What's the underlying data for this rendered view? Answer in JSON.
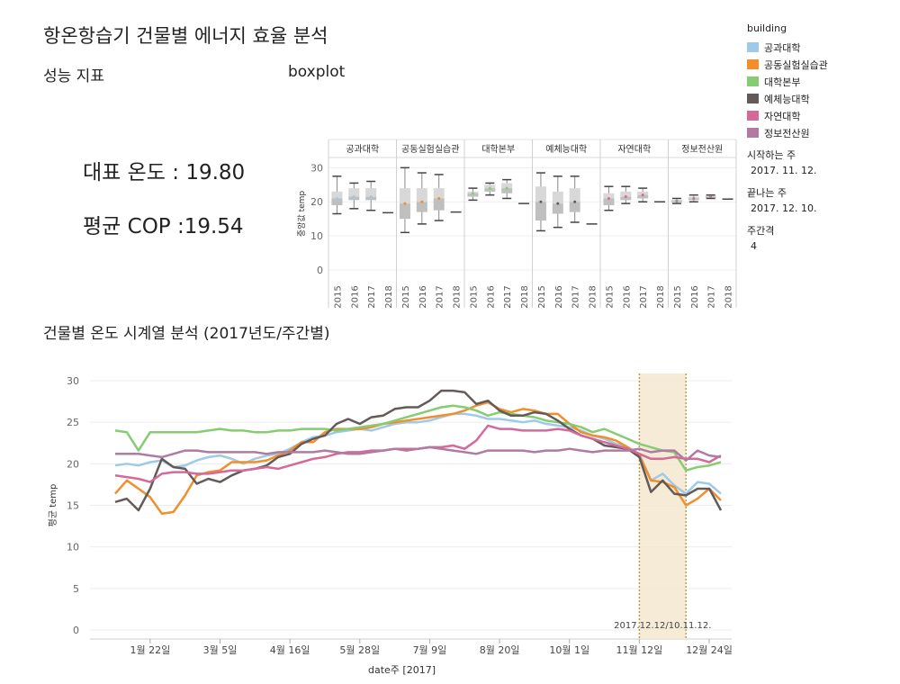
{
  "page": {
    "title": "항온항습기 건물별 에너지 효율 분석",
    "perf_label": "성능 지표",
    "boxplot_label": "boxplot",
    "kpi_temp": "대표 온도 : 19.80",
    "kpi_cop": "평균 COP :19.54",
    "timeseries_title": "건물별  온도 시계열 분석 (2017년도/주간별)"
  },
  "legend": {
    "title": "building",
    "items": [
      {
        "label": "공과대학",
        "color": "#9ecae9"
      },
      {
        "label": "공동실험실습관",
        "color": "#f28e2b"
      },
      {
        "label": "대학본부",
        "color": "#86cc72"
      },
      {
        "label": "예체능대학",
        "color": "#635b59"
      },
      {
        "label": "자연대학",
        "color": "#d4699a"
      },
      {
        "label": "정보전산원",
        "color": "#b07aa1"
      }
    ]
  },
  "params": {
    "start_label": "시작하는 주",
    "start_value": "2017. 11. 12.",
    "end_label": "끝나는 주",
    "end_value": "2017. 12. 10.",
    "interval_label": "주간격",
    "interval_value": "4"
  },
  "chart_data": [
    {
      "type": "boxplot",
      "ylabel": "중앙값 temp",
      "ylim": [
        0,
        33
      ],
      "yticks": [
        0,
        10,
        20,
        30
      ],
      "panels": [
        {
          "name": "공과대학",
          "years": [
            "2015",
            "2016",
            "2017",
            "2018"
          ],
          "boxes": [
            {
              "min": 16.5,
              "q1": 19,
              "med": 21,
              "q3": 23,
              "max": 27.5
            },
            {
              "min": 18,
              "q1": 20.5,
              "med": 21.5,
              "q3": 24,
              "max": 25.5
            },
            {
              "min": 17.5,
              "q1": 20.5,
              "med": 21.5,
              "q3": 24,
              "max": 26
            },
            {
              "min": 16.8,
              "q1": 16.8,
              "med": 16.8,
              "q3": 16.8,
              "max": 16.8
            }
          ]
        },
        {
          "name": "공동실험실습관",
          "years": [
            "2015",
            "2016",
            "2017",
            "2018"
          ],
          "boxes": [
            {
              "min": 11,
              "q1": 15,
              "med": 19.5,
              "q3": 24,
              "max": 30
            },
            {
              "min": 13.5,
              "q1": 17,
              "med": 20,
              "q3": 24,
              "max": 28.5
            },
            {
              "min": 14.5,
              "q1": 17.5,
              "med": 21,
              "q3": 24,
              "max": 28
            },
            {
              "min": 17,
              "q1": 17,
              "med": 17,
              "q3": 17,
              "max": 17
            }
          ]
        },
        {
          "name": "대학본부",
          "years": [
            "2015",
            "2016",
            "2017",
            "2018"
          ],
          "boxes": [
            {
              "min": 20.5,
              "q1": 21.5,
              "med": 22.5,
              "q3": 23,
              "max": 24
            },
            {
              "min": 22,
              "q1": 23,
              "med": 24,
              "q3": 25,
              "max": 25.5
            },
            {
              "min": 21,
              "q1": 22.5,
              "med": 24,
              "q3": 25.5,
              "max": 26.5
            },
            {
              "min": 19.5,
              "q1": 19.5,
              "med": 19.5,
              "q3": 19.5,
              "max": 19.5
            }
          ]
        },
        {
          "name": "예체능대학",
          "years": [
            "2015",
            "2016",
            "2017",
            "2018"
          ],
          "boxes": [
            {
              "min": 11.5,
              "q1": 14.5,
              "med": 20,
              "q3": 24.5,
              "max": 28.5
            },
            {
              "min": 12.5,
              "q1": 16.5,
              "med": 19.5,
              "q3": 23,
              "max": 27.5
            },
            {
              "min": 14,
              "q1": 17,
              "med": 20,
              "q3": 24,
              "max": 27.5
            },
            {
              "min": 13.5,
              "q1": 13.5,
              "med": 13.5,
              "q3": 13.5,
              "max": 13.5
            }
          ]
        },
        {
          "name": "자연대학",
          "years": [
            "2015",
            "2016",
            "2017",
            "2018"
          ],
          "boxes": [
            {
              "min": 17.5,
              "q1": 19,
              "med": 21,
              "q3": 22.5,
              "max": 24.5
            },
            {
              "min": 19.5,
              "q1": 20.5,
              "med": 21.5,
              "q3": 23,
              "max": 24.5
            },
            {
              "min": 20,
              "q1": 21,
              "med": 22,
              "q3": 23,
              "max": 24
            },
            {
              "min": 20,
              "q1": 20,
              "med": 20,
              "q3": 20,
              "max": 20
            }
          ]
        },
        {
          "name": "정보전산원",
          "years": [
            "2015",
            "2016",
            "2017",
            "2018"
          ],
          "boxes": [
            {
              "min": 19.5,
              "q1": 19.8,
              "med": 20.2,
              "q3": 20.6,
              "max": 21
            },
            {
              "min": 20,
              "q1": 20.5,
              "med": 21,
              "q3": 21.5,
              "max": 22
            },
            {
              "min": 21,
              "q1": 21.2,
              "med": 21.5,
              "q3": 21.8,
              "max": 22
            },
            {
              "min": 20.8,
              "q1": 20.8,
              "med": 20.8,
              "q3": 20.8,
              "max": 20.8
            }
          ]
        }
      ]
    },
    {
      "type": "line",
      "xlabel": "date주 [2017]",
      "ylabel": "평균 temp",
      "ylim": [
        0,
        30
      ],
      "yticks": [
        0,
        5,
        10,
        15,
        20,
        25,
        30
      ],
      "weeks": 52,
      "xticks": [
        {
          "label": "1월 22일",
          "week": 3
        },
        {
          "label": "3월 5일",
          "week": 9
        },
        {
          "label": "4월 16일",
          "week": 15
        },
        {
          "label": "5월 28일",
          "week": 21
        },
        {
          "label": "7월 9일",
          "week": 27
        },
        {
          "label": "8월 20일",
          "week": 33
        },
        {
          "label": "10월 1일",
          "week": 39
        },
        {
          "label": "11월 12일",
          "week": 45
        },
        {
          "label": "12월 24일",
          "week": 51
        }
      ],
      "highlight": {
        "from_week": 45,
        "to_week": 49,
        "label": "2017.12.12/10.11.12."
      },
      "series": [
        {
          "name": "공과대학",
          "color": "#9ecae9",
          "values": [
            19.8,
            20.0,
            19.8,
            20.2,
            20.4,
            19.6,
            19.8,
            20.4,
            20.8,
            21.0,
            20.6,
            20.0,
            20.6,
            21.0,
            21.2,
            21.8,
            22.6,
            23.2,
            23.4,
            23.8,
            24.0,
            24.2,
            24.0,
            24.4,
            24.8,
            25.0,
            25.0,
            25.2,
            25.6,
            26.0,
            26.0,
            25.8,
            25.4,
            25.4,
            25.2,
            25.0,
            25.2,
            24.8,
            24.6,
            24.4,
            24.0,
            23.4,
            23.0,
            22.4,
            22.0,
            21.2,
            18.0,
            18.8,
            17.4,
            16.4,
            17.8,
            17.6,
            16.4
          ]
        },
        {
          "name": "공동실험실습관",
          "color": "#f28e2b",
          "values": [
            16.4,
            18.0,
            17.0,
            16.0,
            14.0,
            14.2,
            16.2,
            18.6,
            19.0,
            19.2,
            20.2,
            20.2,
            20.2,
            20.4,
            21.0,
            21.6,
            22.6,
            22.6,
            23.8,
            24.2,
            24.2,
            24.2,
            24.4,
            24.8,
            25.0,
            25.2,
            25.4,
            25.6,
            25.8,
            26.0,
            26.4,
            27.0,
            27.4,
            26.6,
            26.2,
            26.6,
            26.4,
            26.0,
            26.0,
            24.8,
            23.8,
            23.4,
            23.2,
            22.8,
            22.0,
            21.0,
            18.0,
            17.8,
            17.2,
            15.0,
            15.8,
            17.0,
            15.6
          ]
        },
        {
          "name": "대학본부",
          "color": "#86cc72",
          "values": [
            24.0,
            23.8,
            21.6,
            23.8,
            23.8,
            23.8,
            23.8,
            23.8,
            24.0,
            24.2,
            24.0,
            24.0,
            23.8,
            23.8,
            24.0,
            24.0,
            24.2,
            24.2,
            24.2,
            24.0,
            24.2,
            24.4,
            24.6,
            24.8,
            25.2,
            25.6,
            26.0,
            26.4,
            26.8,
            27.0,
            26.8,
            26.4,
            25.8,
            26.2,
            26.0,
            25.8,
            25.6,
            25.2,
            25.0,
            24.8,
            24.4,
            23.8,
            24.2,
            23.6,
            23.0,
            22.4,
            22.0,
            21.6,
            21.4,
            19.2,
            19.6,
            19.8,
            20.2
          ]
        },
        {
          "name": "예체능대학",
          "color": "#635b59",
          "values": [
            15.4,
            15.8,
            14.4,
            17.0,
            20.6,
            19.6,
            19.4,
            17.6,
            18.2,
            17.8,
            18.6,
            19.2,
            19.4,
            19.8,
            20.8,
            21.2,
            22.4,
            23.0,
            23.4,
            24.8,
            25.4,
            24.8,
            25.6,
            25.8,
            26.6,
            26.8,
            26.8,
            27.6,
            28.8,
            28.8,
            28.6,
            27.2,
            27.6,
            26.4,
            25.8,
            25.8,
            26.2,
            26.0,
            25.2,
            24.2,
            23.4,
            23.0,
            22.2,
            22.0,
            21.8,
            20.8,
            16.6,
            18.0,
            16.4,
            16.2,
            17.0,
            17.0,
            14.4
          ]
        },
        {
          "name": "자연대학",
          "color": "#d4699a",
          "values": [
            18.6,
            18.4,
            18.2,
            17.8,
            18.8,
            19.0,
            19.0,
            18.8,
            18.8,
            19.0,
            19.2,
            19.2,
            19.4,
            19.6,
            19.4,
            19.8,
            20.2,
            20.6,
            20.8,
            21.2,
            21.4,
            21.4,
            21.6,
            21.6,
            21.8,
            21.8,
            21.8,
            22.0,
            22.0,
            22.2,
            21.8,
            22.8,
            24.6,
            24.2,
            24.2,
            24.0,
            24.0,
            24.0,
            24.2,
            24.0,
            23.4,
            23.0,
            22.6,
            22.2,
            21.8,
            21.2,
            20.6,
            20.6,
            20.8,
            20.6,
            20.6,
            20.2,
            21.0
          ]
        },
        {
          "name": "정보전산원",
          "color": "#b07aa1",
          "values": [
            21.2,
            21.2,
            21.2,
            21.0,
            20.8,
            21.2,
            21.6,
            21.6,
            21.4,
            21.4,
            21.4,
            21.4,
            21.4,
            21.2,
            21.4,
            21.4,
            21.4,
            21.4,
            21.6,
            21.4,
            21.2,
            21.2,
            21.4,
            21.6,
            21.8,
            21.6,
            21.8,
            22.0,
            21.8,
            21.6,
            21.4,
            21.2,
            21.6,
            21.6,
            21.6,
            21.6,
            21.4,
            21.6,
            21.6,
            21.8,
            21.6,
            21.4,
            21.6,
            21.6,
            21.6,
            21.8,
            21.4,
            21.6,
            21.6,
            20.4,
            21.6,
            21.0,
            20.8
          ]
        }
      ]
    }
  ]
}
